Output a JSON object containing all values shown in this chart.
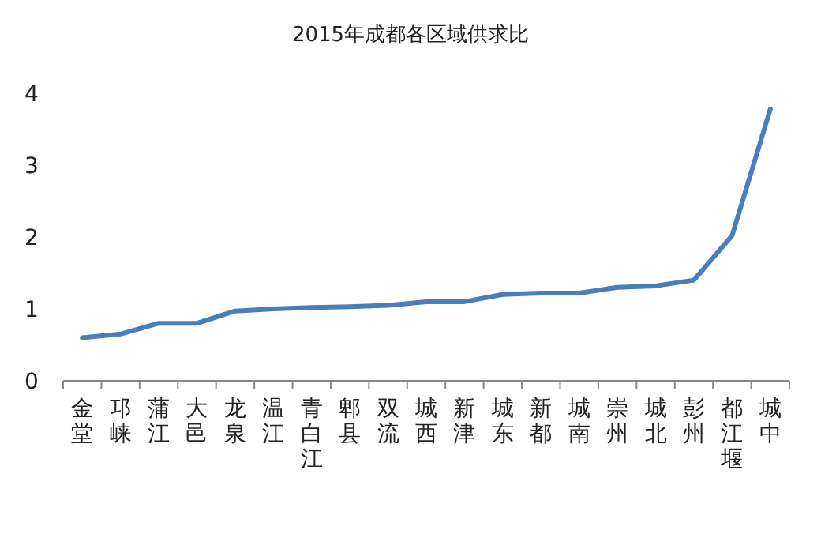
{
  "chart_data": {
    "type": "line",
    "title": "2015年成都各区域供求比",
    "categories": [
      "金堂",
      "邛崃",
      "蒲江",
      "大邑",
      "龙泉",
      "温江",
      "青白江",
      "郫县",
      "双流",
      "城西",
      "新津",
      "城东",
      "新都",
      "城南",
      "崇州",
      "城北",
      "彭州",
      "都江堰",
      "城中"
    ],
    "values": [
      0.6,
      0.65,
      0.8,
      0.8,
      0.97,
      1.0,
      1.02,
      1.03,
      1.05,
      1.1,
      1.1,
      1.2,
      1.22,
      1.22,
      1.3,
      1.32,
      1.4,
      2.02,
      3.78
    ],
    "color": "#4a7ebb",
    "ylim": [
      0,
      4
    ],
    "yticks": [
      0,
      1,
      2,
      3,
      4
    ],
    "grid": false,
    "marker": "none",
    "line_style": "solid"
  }
}
